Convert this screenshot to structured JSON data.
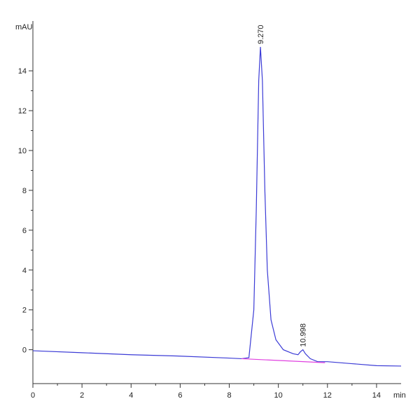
{
  "chart_data": {
    "type": "line",
    "x_label": "min",
    "y_label": "mAU",
    "xlim": [
      0,
      15
    ],
    "ylim": [
      -1.7,
      16.5
    ],
    "xticks": [
      0,
      2,
      4,
      6,
      8,
      10,
      12,
      14
    ],
    "yticks": [
      0,
      2,
      4,
      6,
      8,
      10,
      12,
      14
    ],
    "series": [
      {
        "color": "#3b3bd6",
        "x": [
          0,
          2,
          4,
          6,
          8,
          8.5,
          8.8,
          9.0,
          9.1,
          9.2,
          9.27,
          9.35,
          9.45,
          9.55,
          9.7,
          9.9,
          10.2,
          10.6,
          10.8,
          10.9,
          11.0,
          11.1,
          11.3,
          11.6,
          12,
          13,
          14,
          15
        ],
        "values": [
          -0.05,
          -0.15,
          -0.25,
          -0.32,
          -0.42,
          -0.45,
          -0.4,
          2.0,
          7.0,
          13.5,
          15.2,
          13.5,
          8.0,
          4.0,
          1.5,
          0.5,
          0.0,
          -0.2,
          -0.25,
          -0.1,
          0.0,
          -0.2,
          -0.45,
          -0.6,
          -0.6,
          -0.7,
          -0.8,
          -0.82
        ]
      },
      {
        "color": "#e040e0",
        "x": [
          8.5,
          11.9
        ],
        "values": [
          -0.45,
          -0.65
        ]
      }
    ],
    "annotations": [
      {
        "text": "9.270",
        "x": 9.27,
        "y": 15.2
      },
      {
        "text": "10.998",
        "x": 10.998,
        "y": 0.0
      }
    ]
  }
}
